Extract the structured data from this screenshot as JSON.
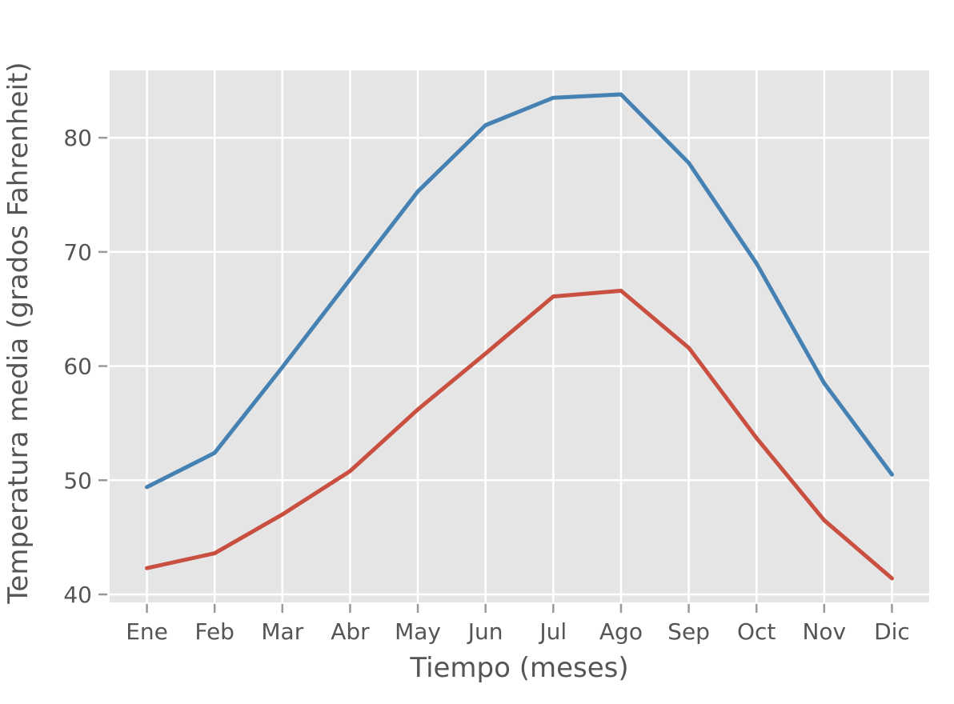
{
  "page": {
    "background": "#ffffff"
  },
  "chart_data": {
    "type": "line",
    "title": "",
    "xlabel": "Tiempo (meses)",
    "ylabel": "Temperatura media (grados Fahrenheit)",
    "categories": [
      "Ene",
      "Feb",
      "Mar",
      "Abr",
      "May",
      "Jun",
      "Jul",
      "Ago",
      "Sep",
      "Oct",
      "Nov",
      "Dic"
    ],
    "series": [
      {
        "name": "linea azul (superior)",
        "color": "#4581B2",
        "values": [
          49.4,
          52.4,
          59.9,
          67.6,
          75.3,
          81.1,
          83.5,
          83.8,
          77.8,
          69.0,
          58.5,
          50.5
        ]
      },
      {
        "name": "linea roja (inferior)",
        "color": "#C94F40",
        "values": [
          42.3,
          43.6,
          47.0,
          50.8,
          56.2,
          61.1,
          66.1,
          66.6,
          61.6,
          53.7,
          46.5,
          41.4
        ]
      }
    ],
    "yticks": [
      40,
      50,
      60,
      70,
      80
    ],
    "ylim": [
      39.3,
      85.9
    ],
    "grid": true,
    "legend": "none",
    "plot_background": "#e5e5e5",
    "grid_color": "#ffffff",
    "tick_mark_color": "#999999",
    "text_color": "#555555"
  }
}
